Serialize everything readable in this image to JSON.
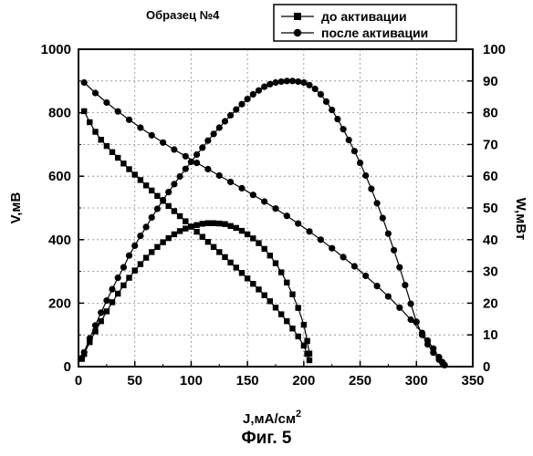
{
  "figure_caption": "Фиг. 5",
  "chart_data": {
    "type": "line",
    "title": "Образец №4",
    "xlabel": "J,мА/см",
    "xlabel_sup": "2",
    "ylabel_left": "V,мВ",
    "ylabel_right": "W,мВт",
    "xlim": [
      0,
      350
    ],
    "ylim_left": [
      0,
      1000
    ],
    "ylim_right": [
      0,
      100
    ],
    "x_ticks": [
      "0",
      "50",
      "100",
      "150",
      "200",
      "250",
      "300",
      "350"
    ],
    "y_left_ticks": [
      "0",
      "200",
      "400",
      "600",
      "800",
      "1000"
    ],
    "y_right_ticks": [
      "0",
      "10",
      "20",
      "30",
      "40",
      "50",
      "60",
      "70",
      "80",
      "90",
      "100"
    ],
    "grid": true,
    "legend_position": "top-right",
    "legend": [
      {
        "label": "до активации",
        "marker": "square"
      },
      {
        "label": "после активации",
        "marker": "circle"
      }
    ],
    "series": [
      {
        "name": "до активации",
        "kind": "voltage",
        "axis": "left",
        "marker": "square",
        "x": [
          5,
          10,
          15,
          20,
          25,
          30,
          35,
          40,
          45,
          50,
          55,
          60,
          65,
          70,
          75,
          80,
          85,
          90,
          95,
          100,
          105,
          110,
          115,
          120,
          125,
          130,
          135,
          140,
          145,
          150,
          155,
          160,
          165,
          170,
          175,
          180,
          185,
          190,
          195,
          200,
          203,
          205
        ],
        "y": [
          805,
          770,
          740,
          715,
          695,
          676,
          658,
          640,
          622,
          605,
          588,
          571,
          555,
          538,
          522,
          506,
          490,
          474,
          458,
          441,
          425,
          409,
          393,
          377,
          361,
          345,
          328,
          312,
          295,
          278,
          261,
          243,
          225,
          206,
          186,
          165,
          143,
          120,
          95,
          66,
          40,
          20
        ]
      },
      {
        "name": "до активации",
        "kind": "power",
        "axis": "right",
        "marker": "square",
        "x": [
          3,
          5,
          10,
          15,
          20,
          25,
          30,
          35,
          40,
          45,
          50,
          55,
          60,
          65,
          70,
          75,
          80,
          85,
          90,
          95,
          100,
          105,
          110,
          115,
          120,
          125,
          130,
          135,
          140,
          145,
          150,
          155,
          160,
          165,
          170,
          175,
          180,
          185,
          190,
          195,
          200,
          203,
          205
        ],
        "y": [
          2.4,
          4.0,
          7.7,
          11.1,
          14.3,
          17.4,
          20.3,
          23.0,
          25.6,
          28.0,
          30.3,
          32.3,
          34.3,
          36.1,
          37.7,
          39.2,
          40.5,
          41.7,
          42.7,
          43.5,
          44.1,
          44.6,
          45.0,
          45.2,
          45.2,
          45.1,
          44.9,
          44.3,
          43.7,
          42.8,
          41.7,
          40.4,
          38.9,
          37.1,
          35.0,
          32.6,
          29.7,
          26.5,
          22.8,
          18.5,
          13.2,
          8.1,
          4.1
        ]
      },
      {
        "name": "после активации",
        "kind": "voltage",
        "axis": "left",
        "marker": "circle",
        "x": [
          5,
          15,
          25,
          35,
          45,
          55,
          65,
          75,
          85,
          95,
          105,
          115,
          125,
          135,
          145,
          155,
          165,
          175,
          185,
          195,
          205,
          215,
          225,
          235,
          245,
          255,
          265,
          275,
          285,
          295,
          305,
          310,
          315,
          320,
          323,
          325
        ],
        "y": [
          895,
          862,
          832,
          804,
          778,
          753,
          729,
          706,
          684,
          663,
          642,
          622,
          602,
          582,
          562,
          541,
          520,
          498,
          475,
          451,
          426,
          400,
          373,
          345,
          316,
          286,
          254,
          221,
          186,
          148,
          106,
          82,
          57,
          30,
          14,
          5
        ]
      },
      {
        "name": "после активации",
        "kind": "power",
        "axis": "right",
        "marker": "circle",
        "x": [
          3,
          5,
          10,
          15,
          20,
          25,
          30,
          35,
          40,
          45,
          50,
          55,
          60,
          65,
          70,
          75,
          80,
          85,
          90,
          95,
          100,
          105,
          110,
          115,
          120,
          125,
          130,
          135,
          140,
          145,
          150,
          155,
          160,
          165,
          170,
          175,
          180,
          185,
          190,
          195,
          200,
          205,
          210,
          215,
          220,
          225,
          230,
          235,
          240,
          245,
          250,
          255,
          260,
          265,
          270,
          275,
          280,
          285,
          290,
          295,
          300,
          305,
          310,
          315,
          320,
          323,
          325
        ],
        "y": [
          2.7,
          4.5,
          8.9,
          13.0,
          17.0,
          20.8,
          24.4,
          28.0,
          31.3,
          35.0,
          38.1,
          41.2,
          44.0,
          47.0,
          49.7,
          52.5,
          55.0,
          57.5,
          59.9,
          62.3,
          64.5,
          66.8,
          69.0,
          71.2,
          73.3,
          75.3,
          77.3,
          79.2,
          81.0,
          82.7,
          84.3,
          85.8,
          87.0,
          88.2,
          89.0,
          89.5,
          89.8,
          90.0,
          90.0,
          89.8,
          89.5,
          88.7,
          87.5,
          85.8,
          83.5,
          80.9,
          78.0,
          74.8,
          71.4,
          67.9,
          64.2,
          60.2,
          56.0,
          51.5,
          46.8,
          41.9,
          36.7,
          31.3,
          25.7,
          19.8,
          14.1,
          10.0,
          7.0,
          4.4,
          2.2,
          1.2,
          0.5
        ]
      }
    ]
  }
}
